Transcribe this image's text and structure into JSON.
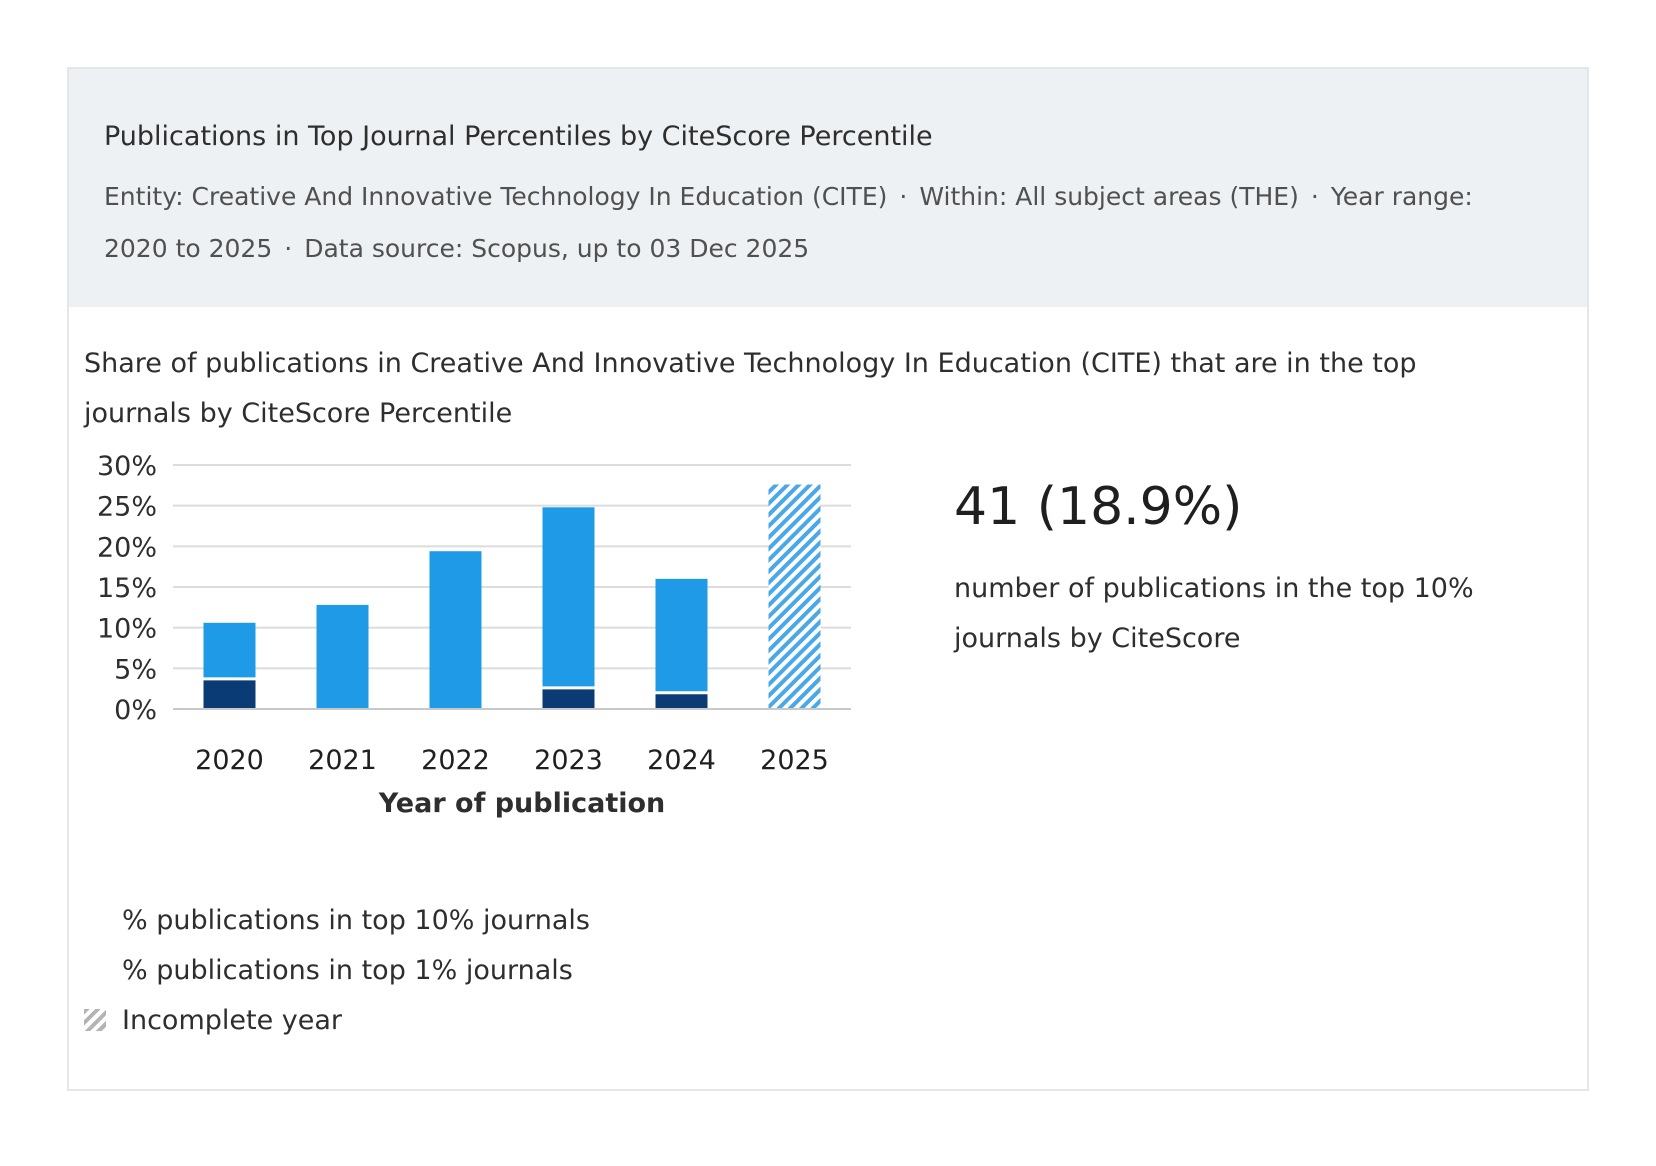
{
  "header": {
    "title": "Publications in Top Journal Percentiles by CiteScore Percentile",
    "entity": "Entity: Creative And Innovative Technology In Education (CITE)",
    "within": "Within: All subject areas (THE)",
    "year_range_label": "Year range:",
    "year_range_value": "2020 to 2025",
    "data_source": "Data source: Scopus, up to 03 Dec 2025",
    "separator": "·"
  },
  "subtitle": "Share of publications in Creative And Innovative Technology In Education (CITE) that are in the top journals by CiteScore Percentile",
  "kpi": {
    "value": "41 (18.9%)",
    "description": "number of publications in the top 10% journals by CiteScore"
  },
  "legend": {
    "top10": "% publications in top 10% journals",
    "top1": "% publications in top 1% journals",
    "incomplete": "Incomplete year"
  },
  "colors": {
    "top10": "#1f9ae6",
    "top1": "#0b3b74",
    "grid": "#dcdcdc",
    "axis": "#c8c8c8"
  },
  "chart_data": {
    "type": "bar",
    "categories": [
      "2020",
      "2021",
      "2022",
      "2023",
      "2024",
      "2025"
    ],
    "series": [
      {
        "name": "% publications in top 10% journals",
        "values": [
          10.6,
          12.8,
          19.4,
          24.8,
          16.0,
          27.6
        ]
      },
      {
        "name": "% publications in top 1% journals",
        "values": [
          3.7,
          0,
          0,
          2.6,
          2.0,
          0
        ]
      }
    ],
    "incomplete": [
      false,
      false,
      false,
      false,
      false,
      true
    ],
    "yticks": [
      "0%",
      "5%",
      "10%",
      "15%",
      "20%",
      "25%",
      "30%"
    ],
    "ylim": [
      0,
      30
    ],
    "xlabel": "Year of publication",
    "ylabel": ""
  }
}
